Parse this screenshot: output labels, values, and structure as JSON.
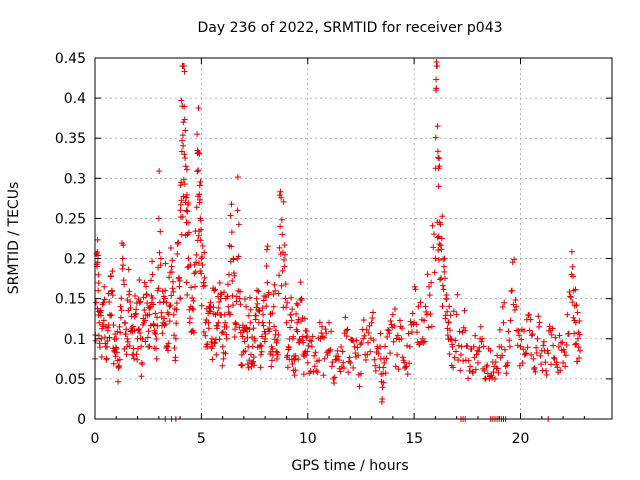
{
  "chart_data": {
    "type": "scatter",
    "title": "Day 236 of 2022, SRMTID for receiver p043",
    "xlabel": "GPS time / hours",
    "ylabel": "SRMTID / TECUs",
    "xlim": [
      0,
      24.3
    ],
    "ylim": [
      0,
      0.45
    ],
    "xticks": [
      0,
      5,
      10,
      15,
      20
    ],
    "xtick_labels": [
      "0",
      "5",
      "10",
      "15",
      "20"
    ],
    "yticks": [
      0,
      0.05,
      0.1,
      0.15,
      0.2,
      0.25,
      0.3,
      0.35,
      0.4,
      0.45
    ],
    "ytick_labels": [
      "0",
      "0.05",
      "0.1",
      "0.15",
      "0.2",
      "0.25",
      "0.3",
      "0.35",
      "0.4",
      "0.45"
    ],
    "grid": true,
    "marker": "+",
    "color": "#e00000",
    "series": [
      {
        "name": "SRMTID",
        "points": [
          [
            0.0,
            0.075
          ],
          [
            0.1,
            0.19
          ],
          [
            0.15,
            0.16
          ],
          [
            0.2,
            0.12
          ],
          [
            0.3,
            0.1
          ],
          [
            0.4,
            0.145
          ],
          [
            0.5,
            0.09
          ],
          [
            0.6,
            0.11
          ],
          [
            0.7,
            0.13
          ],
          [
            0.8,
            0.16
          ],
          [
            0.9,
            0.085
          ],
          [
            1.0,
            0.1
          ],
          [
            1.1,
            0.065
          ],
          [
            1.2,
            0.14
          ],
          [
            1.3,
            0.2
          ],
          [
            1.4,
            0.12
          ],
          [
            1.5,
            0.09
          ],
          [
            1.6,
            0.155
          ],
          [
            1.7,
            0.11
          ],
          [
            1.8,
            0.08
          ],
          [
            1.9,
            0.13
          ],
          [
            2.0,
            0.1
          ],
          [
            2.1,
            0.145
          ],
          [
            2.2,
            0.07
          ],
          [
            2.3,
            0.12
          ],
          [
            2.4,
            0.165
          ],
          [
            2.5,
            0.09
          ],
          [
            2.6,
            0.14
          ],
          [
            2.7,
            0.18
          ],
          [
            2.8,
            0.11
          ],
          [
            2.9,
            0.075
          ],
          [
            3.0,
            0.25
          ],
          [
            3.1,
            0.2
          ],
          [
            3.2,
            0.12
          ],
          [
            3.3,
            0.16
          ],
          [
            3.4,
            0.09
          ],
          [
            3.5,
            0.14
          ],
          [
            3.6,
            0.19
          ],
          [
            3.7,
            0.13
          ],
          [
            3.8,
            0.1
          ],
          [
            3.9,
            0.22
          ],
          [
            4.0,
            0.15
          ],
          [
            4.05,
            0.295
          ],
          [
            4.1,
            0.39
          ],
          [
            4.15,
            0.37
          ],
          [
            4.2,
            0.33
          ],
          [
            4.25,
            0.27
          ],
          [
            4.3,
            0.245
          ],
          [
            4.35,
            0.23
          ],
          [
            4.4,
            0.19
          ],
          [
            4.5,
            0.14
          ],
          [
            4.6,
            0.11
          ],
          [
            4.7,
            0.165
          ],
          [
            4.8,
            0.355
          ],
          [
            4.85,
            0.31
          ],
          [
            4.9,
            0.28
          ],
          [
            4.95,
            0.25
          ],
          [
            5.0,
            0.2
          ],
          [
            5.1,
            0.17
          ],
          [
            5.2,
            0.12
          ],
          [
            5.3,
            0.09
          ],
          [
            5.4,
            0.14
          ],
          [
            5.5,
            0.1
          ],
          [
            5.6,
            0.16
          ],
          [
            5.7,
            0.08
          ],
          [
            5.8,
            0.12
          ],
          [
            5.9,
            0.15
          ],
          [
            6.0,
            0.09
          ],
          [
            6.1,
            0.13
          ],
          [
            6.2,
            0.1
          ],
          [
            6.3,
            0.18
          ],
          [
            6.4,
            0.215
          ],
          [
            6.5,
            0.2
          ],
          [
            6.6,
            0.12
          ],
          [
            6.7,
            0.26
          ],
          [
            6.8,
            0.15
          ],
          [
            6.9,
            0.08
          ],
          [
            7.0,
            0.11
          ],
          [
            7.1,
            0.14
          ],
          [
            7.2,
            0.09
          ],
          [
            7.3,
            0.12
          ],
          [
            7.4,
            0.07
          ],
          [
            7.5,
            0.1
          ],
          [
            7.6,
            0.15
          ],
          [
            7.7,
            0.12
          ],
          [
            7.8,
            0.08
          ],
          [
            7.9,
            0.13
          ],
          [
            8.0,
            0.1
          ],
          [
            8.1,
            0.17
          ],
          [
            8.2,
            0.12
          ],
          [
            8.3,
            0.09
          ],
          [
            8.4,
            0.14
          ],
          [
            8.5,
            0.11
          ],
          [
            8.6,
            0.08
          ],
          [
            8.7,
            0.24
          ],
          [
            8.8,
            0.23
          ],
          [
            8.9,
            0.19
          ],
          [
            9.0,
            0.12
          ],
          [
            9.1,
            0.09
          ],
          [
            9.2,
            0.13
          ],
          [
            9.3,
            0.1
          ],
          [
            9.4,
            0.075
          ],
          [
            9.5,
            0.12
          ],
          [
            9.6,
            0.095
          ],
          [
            9.7,
            0.15
          ],
          [
            9.8,
            0.08
          ],
          [
            9.9,
            0.11
          ],
          [
            10.0,
            0.07
          ],
          [
            10.2,
            0.09
          ],
          [
            10.4,
            0.06
          ],
          [
            10.6,
            0.1
          ],
          [
            10.8,
            0.075
          ],
          [
            11.0,
            0.12
          ],
          [
            11.2,
            0.05
          ],
          [
            11.4,
            0.085
          ],
          [
            11.6,
            0.065
          ],
          [
            11.8,
            0.11
          ],
          [
            12.0,
            0.07
          ],
          [
            12.2,
            0.09
          ],
          [
            12.4,
            0.055
          ],
          [
            12.6,
            0.1
          ],
          [
            12.8,
            0.08
          ],
          [
            13.0,
            0.12
          ],
          [
            13.2,
            0.06
          ],
          [
            13.4,
            0.09
          ],
          [
            13.5,
            0.025
          ],
          [
            13.6,
            0.07
          ],
          [
            13.8,
            0.11
          ],
          [
            14.0,
            0.13
          ],
          [
            14.2,
            0.08
          ],
          [
            14.4,
            0.1
          ],
          [
            14.6,
            0.065
          ],
          [
            14.8,
            0.09
          ],
          [
            15.0,
            0.12
          ],
          [
            15.2,
            0.14
          ],
          [
            15.4,
            0.1
          ],
          [
            15.6,
            0.13
          ],
          [
            15.8,
            0.17
          ],
          [
            16.0,
            0.2
          ],
          [
            16.05,
            0.445
          ],
          [
            16.1,
            0.365
          ],
          [
            16.15,
            0.29
          ],
          [
            16.2,
            0.245
          ],
          [
            16.3,
            0.225
          ],
          [
            16.4,
            0.19
          ],
          [
            16.5,
            0.15
          ],
          [
            16.6,
            0.12
          ],
          [
            16.7,
            0.1
          ],
          [
            16.8,
            0.09
          ],
          [
            17.0,
            0.13
          ],
          [
            17.2,
            0.08
          ],
          [
            17.4,
            0.11
          ],
          [
            17.6,
            0.06
          ],
          [
            17.8,
            0.09
          ],
          [
            18.0,
            0.07
          ],
          [
            18.2,
            0.1
          ],
          [
            18.4,
            0.065
          ],
          [
            18.6,
            0.085
          ],
          [
            18.8,
            0.05
          ],
          [
            19.0,
            0.09
          ],
          [
            19.2,
            0.12
          ],
          [
            19.4,
            0.07
          ],
          [
            19.6,
            0.16
          ],
          [
            19.8,
            0.14
          ],
          [
            20.0,
            0.09
          ],
          [
            20.2,
            0.08
          ],
          [
            20.4,
            0.13
          ],
          [
            20.6,
            0.075
          ],
          [
            20.8,
            0.1
          ],
          [
            21.0,
            0.085
          ],
          [
            21.2,
            0.06
          ],
          [
            21.4,
            0.11
          ],
          [
            21.6,
            0.075
          ],
          [
            21.8,
            0.09
          ],
          [
            22.0,
            0.07
          ],
          [
            22.2,
            0.13
          ],
          [
            22.4,
            0.18
          ],
          [
            22.5,
            0.16
          ],
          [
            22.6,
            0.12
          ],
          [
            22.7,
            0.1
          ],
          [
            22.8,
            0.085
          ]
        ]
      }
    ],
    "zero_markers": [
      3.3,
      3.6,
      3.8,
      17.2,
      17.3,
      17.4,
      18.6,
      18.7,
      18.8,
      18.9,
      19.0,
      19.1,
      19.2,
      19.3,
      21.3
    ]
  }
}
